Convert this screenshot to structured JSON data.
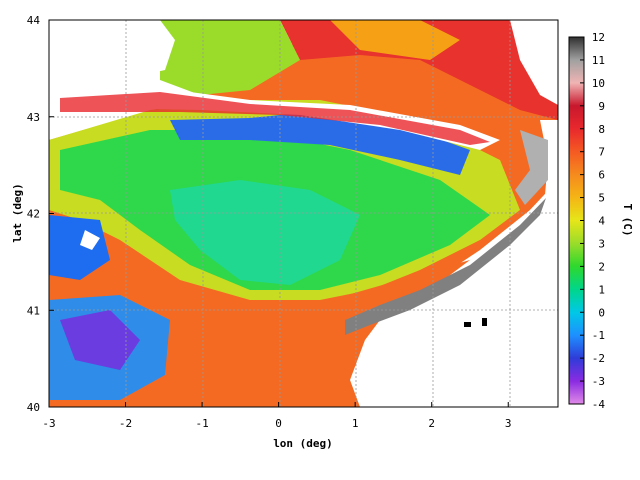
{
  "chart_data": {
    "type": "heatmap",
    "title": "",
    "xlabel": "lon (deg)",
    "ylabel": "lat (deg)",
    "xlim": [
      -3,
      3.65
    ],
    "ylim": [
      40,
      44
    ],
    "x_ticks": [
      -3,
      -2,
      -1,
      0,
      1,
      2,
      3
    ],
    "y_ticks": [
      40,
      41,
      42,
      43,
      44
    ],
    "grid": true,
    "colorbar": {
      "label": "T (C)",
      "min": -4,
      "max": 12,
      "ticks": [
        -4,
        -3,
        -2,
        -1,
        0,
        1,
        2,
        3,
        4,
        5,
        6,
        7,
        8,
        9,
        10,
        11,
        12
      ],
      "colors": [
        "#e08ae8",
        "#8a2be2",
        "#2f3cd8",
        "#1e90ff",
        "#00c8e6",
        "#00d68a",
        "#2ed82e",
        "#9bdc2a",
        "#e6e619",
        "#f5b515",
        "#f58a1e",
        "#f55a23",
        "#e8282d",
        "#c8182d",
        "#f0b4b4",
        "#a0a0a0",
        "#303030"
      ]
    }
  }
}
